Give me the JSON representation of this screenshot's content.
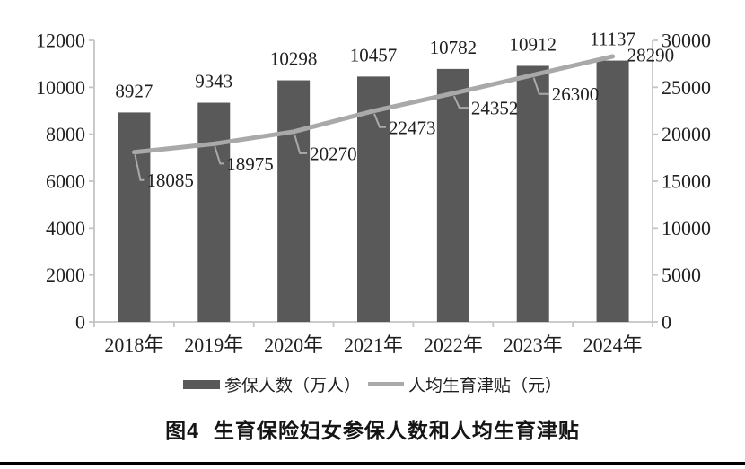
{
  "figure": {
    "caption_label": "图4",
    "caption_title": "生育保险妇女参保人数和人均生育津贴"
  },
  "colors": {
    "bar": "#595959",
    "line": "#a9a9a9",
    "leader": "#a9a9a9",
    "axis": "#c4c4c4",
    "text": "#1f1f1f",
    "rule": "#000000"
  },
  "chart_data": {
    "type": "bar",
    "subtype": "combo-bar-line-dual-axis",
    "categories": [
      "2018年",
      "2019年",
      "2020年",
      "2021年",
      "2022年",
      "2023年",
      "2024年"
    ],
    "series": [
      {
        "name": "参保人数（万人）",
        "type": "bar",
        "axis": "left",
        "color": "#595959",
        "values": [
          8927,
          9343,
          10298,
          10457,
          10782,
          10912,
          11137
        ]
      },
      {
        "name": "人均生育津贴（元）",
        "type": "line",
        "axis": "right",
        "color": "#a9a9a9",
        "values": [
          18085,
          18975,
          20270,
          22473,
          24352,
          26300,
          28290
        ]
      }
    ],
    "left_axis": {
      "min": 0,
      "max": 12000,
      "step": 2000,
      "ticks": [
        0,
        2000,
        4000,
        6000,
        8000,
        10000,
        12000
      ]
    },
    "right_axis": {
      "min": 0,
      "max": 30000,
      "step": 5000,
      "ticks": [
        0,
        5000,
        10000,
        15000,
        20000,
        25000,
        30000
      ]
    },
    "data_labels": true,
    "grid": false,
    "legend_position": "bottom",
    "title": "图4 生育保险妇女参保人数和人均生育津贴"
  }
}
